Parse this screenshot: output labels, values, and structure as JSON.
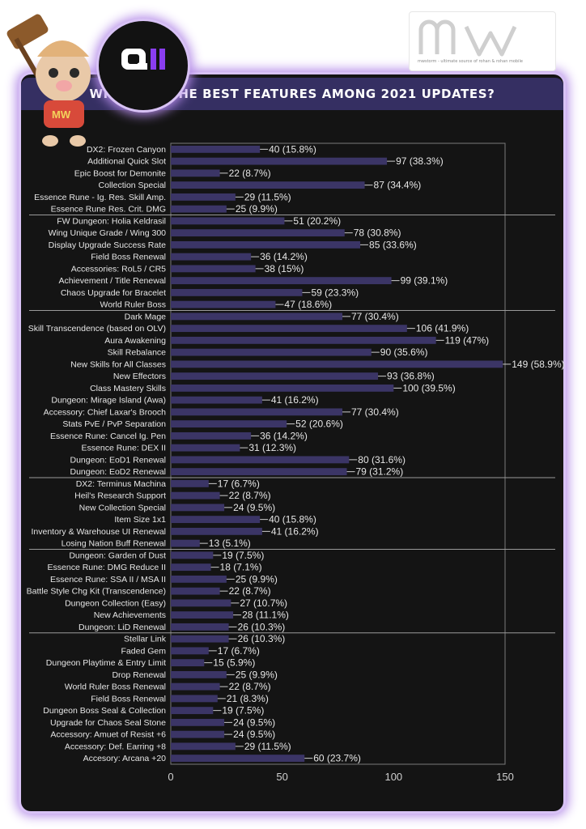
{
  "page": {
    "title": "WHAT ARE THE BEST FEATURES AMONG 2021 UPDATES?",
    "badge_text": "QII",
    "brand_text": "mw",
    "brand_tagline": "mwstorm - ultimate source of rohan & rohan mobile"
  },
  "colors": {
    "bar": "#3b3566",
    "card_background": "#141414",
    "title_bar": "#352f62",
    "glow": "#b48be8",
    "text": "#e6e6e6"
  },
  "chart_data": {
    "type": "bar",
    "orientation": "horizontal",
    "title": "WHAT ARE THE BEST FEATURES AMONG 2021 UPDATES?",
    "xlim": [
      0,
      150
    ],
    "xticks": [
      0,
      50,
      100,
      150
    ],
    "grid": false,
    "group_separators_after": [
      5,
      13,
      27,
      33,
      40
    ],
    "categories": [
      "DX2: Frozen Canyon",
      "Additional Quick Slot",
      "Epic Boost for Demonite",
      "Collection Special",
      "Essence Rune - Ig. Res. Skill Amp.",
      "Essence Rune Res. Crit. DMG",
      "FW Dungeon: Holia Keldrasil",
      "Wing Unique Grade / Wing 300",
      "Display Upgrade Success Rate",
      "Field Boss Renewal",
      "Accessories: RoL5 / CR5",
      "Achievement / Title Renewal",
      "Chaos Upgrade for Bracelet",
      "World Ruler Boss",
      "Dark Mage",
      "Skill Transcendence (based on OLV)",
      "Aura Awakening",
      "Skill Rebalance",
      "New Skills for All Classes",
      "New Effectors",
      "Class Mastery Skills",
      "Dungeon: Mirage Island (Awa)",
      "Accessory: Chief Laxar's Brooch",
      "Stats PvE / PvP Separation",
      "Essence Rune: Cancel Ig. Pen",
      "Essence Rune: DEX II",
      "Dungeon: EoD1 Renewal",
      "Dungeon: EoD2 Renewal",
      "DX2: Terminus Machina",
      "Heil's Research Support",
      "New Collection Special",
      "Item Size 1x1",
      "Inventory & Warehouse UI Renewal",
      "Losing Nation Buff Renewal",
      "Dungeon: Garden of Dust",
      "Essence Rune: DMG Reduce II",
      "Essence Rune: SSA II / MSA II",
      "Battle Style Chg Kit (Transcendence)",
      "Dungeon Collection (Easy)",
      "New Achievements",
      "Dungeon: LiD Renewal",
      "Stellar Link",
      "Faded Gem",
      "Dungeon Playtime & Entry Limit",
      "Drop Renewal",
      "World Ruler Boss Renewal",
      "Field Boss Renewal",
      "Dungeon Boss Seal & Collection",
      "Upgrade for Chaos Seal Stone",
      "Accessory: Amuet of Resist +6",
      "Accessory: Def. Earring +8",
      "Accesory: Arcana +20"
    ],
    "values": [
      40,
      97,
      22,
      87,
      29,
      25,
      51,
      78,
      85,
      36,
      38,
      99,
      59,
      47,
      77,
      106,
      119,
      90,
      149,
      93,
      100,
      41,
      77,
      52,
      36,
      31,
      80,
      79,
      17,
      22,
      24,
      40,
      41,
      13,
      19,
      18,
      25,
      22,
      27,
      28,
      26,
      26,
      17,
      15,
      25,
      22,
      21,
      19,
      24,
      24,
      29,
      60
    ],
    "value_labels": [
      "40 (15.8%)",
      "97 (38.3%)",
      "22 (8.7%)",
      "87 (34.4%)",
      "29 (11.5%)",
      "25 (9.9%)",
      "51 (20.2%)",
      "78 (30.8%)",
      "85 (33.6%)",
      "36 (14.2%)",
      "38 (15%)",
      "99 (39.1%)",
      "59 (23.3%)",
      "47 (18.6%)",
      "77 (30.4%)",
      "106 (41.9%)",
      "119 (47%)",
      "90 (35.6%)",
      "149 (58.9%)",
      "93 (36.8%)",
      "100 (39.5%)",
      "41 (16.2%)",
      "77 (30.4%)",
      "52 (20.6%)",
      "36 (14.2%)",
      "31 (12.3%)",
      "80 (31.6%)",
      "79 (31.2%)",
      "17 (6.7%)",
      "22 (8.7%)",
      "24 (9.5%)",
      "40 (15.8%)",
      "41 (16.2%)",
      "13 (5.1%)",
      "19 (7.5%)",
      "18 (7.1%)",
      "25 (9.9%)",
      "22 (8.7%)",
      "27 (10.7%)",
      "28 (11.1%)",
      "26 (10.3%)",
      "26 (10.3%)",
      "17 (6.7%)",
      "15 (5.9%)",
      "25 (9.9%)",
      "22 (8.7%)",
      "21 (8.3%)",
      "19 (7.5%)",
      "24 (9.5%)",
      "24 (9.5%)",
      "29 (11.5%)",
      "60 (23.7%)"
    ]
  }
}
